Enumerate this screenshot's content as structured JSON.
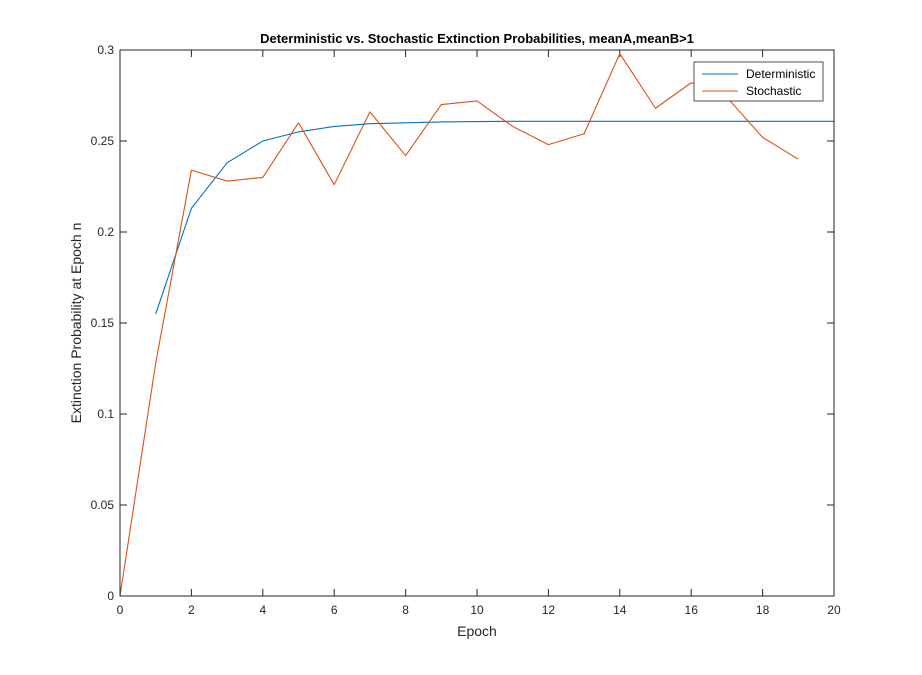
{
  "chart_data": {
    "type": "line",
    "title": "Deterministic vs. Stochastic Extinction Probabilities, meanA,meanB>1",
    "xlabel": "Epoch",
    "ylabel": "Extinction Probability at Epoch n",
    "xlim": [
      0,
      20
    ],
    "ylim": [
      0,
      0.3
    ],
    "xticks": [
      0,
      2,
      4,
      6,
      8,
      10,
      12,
      14,
      16,
      18,
      20
    ],
    "yticks": [
      0,
      0.05,
      0.1,
      0.15,
      0.2,
      0.25,
      0.3
    ],
    "xtick_labels": [
      "0",
      "2",
      "4",
      "6",
      "8",
      "10",
      "12",
      "14",
      "16",
      "18",
      "20"
    ],
    "ytick_labels": [
      "0",
      "0.05",
      "0.1",
      "0.15",
      "0.2",
      "0.25",
      "0.3"
    ],
    "grid": false,
    "legend_position": "top-right",
    "series": [
      {
        "name": "Deterministic",
        "color": "#0072BD",
        "x": [
          1,
          2,
          3,
          4,
          5,
          6,
          7,
          8,
          9,
          10,
          11,
          12,
          13,
          14,
          15,
          16,
          17,
          18,
          19,
          20
        ],
        "y": [
          0.155,
          0.213,
          0.238,
          0.25,
          0.255,
          0.258,
          0.2595,
          0.26,
          0.2605,
          0.2607,
          0.2608,
          0.2608,
          0.2608,
          0.2608,
          0.2608,
          0.2608,
          0.2608,
          0.2608,
          0.2608,
          0.2608
        ]
      },
      {
        "name": "Stochastic",
        "color": "#D95319",
        "x": [
          0,
          1,
          2,
          3,
          4,
          5,
          6,
          7,
          8,
          9,
          10,
          11,
          12,
          13,
          14,
          15,
          16,
          17,
          18,
          19
        ],
        "y": [
          0,
          0.128,
          0.234,
          0.228,
          0.23,
          0.26,
          0.226,
          0.266,
          0.242,
          0.27,
          0.272,
          0.258,
          0.248,
          0.254,
          0.298,
          0.268,
          0.282,
          0.274,
          0.252,
          0.24
        ]
      }
    ]
  }
}
